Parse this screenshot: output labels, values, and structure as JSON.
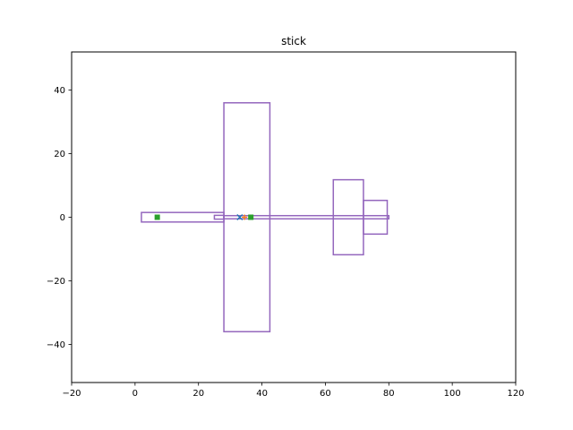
{
  "chart_data": {
    "type": "scatter",
    "title": "stick",
    "xlabel": "",
    "ylabel": "",
    "xlim": [
      -20,
      120
    ],
    "ylim": [
      -52,
      52
    ],
    "xticks": [
      -20,
      0,
      20,
      40,
      60,
      80,
      100,
      120
    ],
    "xtick_labels": [
      "−20",
      "0",
      "20",
      "40",
      "60",
      "80",
      "100",
      "120"
    ],
    "yticks": [
      -40,
      -20,
      0,
      20,
      40
    ],
    "ytick_labels": [
      "−40",
      "−20",
      "0",
      "20",
      "40"
    ],
    "grid": false,
    "colors": {
      "outline": "#9467bd",
      "marker_green": "#2ca02c",
      "marker_blue": "#1f77b4",
      "marker_orange": "#ff7f0e"
    },
    "rectangles": [
      {
        "name": "fuselage-front",
        "x0": 2,
        "x1": 28,
        "y0": -1.5,
        "y1": 1.5
      },
      {
        "name": "fuselage-boom",
        "x0": 28,
        "x1": 80,
        "y0": -0.5,
        "y1": 0.5
      },
      {
        "name": "nose-small",
        "x0": 25,
        "x1": 28,
        "y0": -0.6,
        "y1": 0.6
      },
      {
        "name": "wing",
        "x0": 28,
        "x1": 42.5,
        "y0": -36,
        "y1": 36
      },
      {
        "name": "h-tail",
        "x0": 62.5,
        "x1": 72,
        "y0": -11.8,
        "y1": 11.8
      },
      {
        "name": "v-tail",
        "x0": 72,
        "x1": 79.5,
        "y0": -5.3,
        "y1": 5.3
      }
    ],
    "markers": [
      {
        "name": "marker-square-1",
        "shape": "square",
        "color": "marker_green",
        "x": 7,
        "y": 0
      },
      {
        "name": "marker-square-2",
        "shape": "square",
        "color": "marker_green",
        "x": 36.5,
        "y": 0
      },
      {
        "name": "marker-x",
        "shape": "x",
        "color": "marker_blue",
        "x": 33,
        "y": 0
      },
      {
        "name": "marker-plus",
        "shape": "plus",
        "color": "marker_orange",
        "x": 34.5,
        "y": 0
      }
    ]
  }
}
